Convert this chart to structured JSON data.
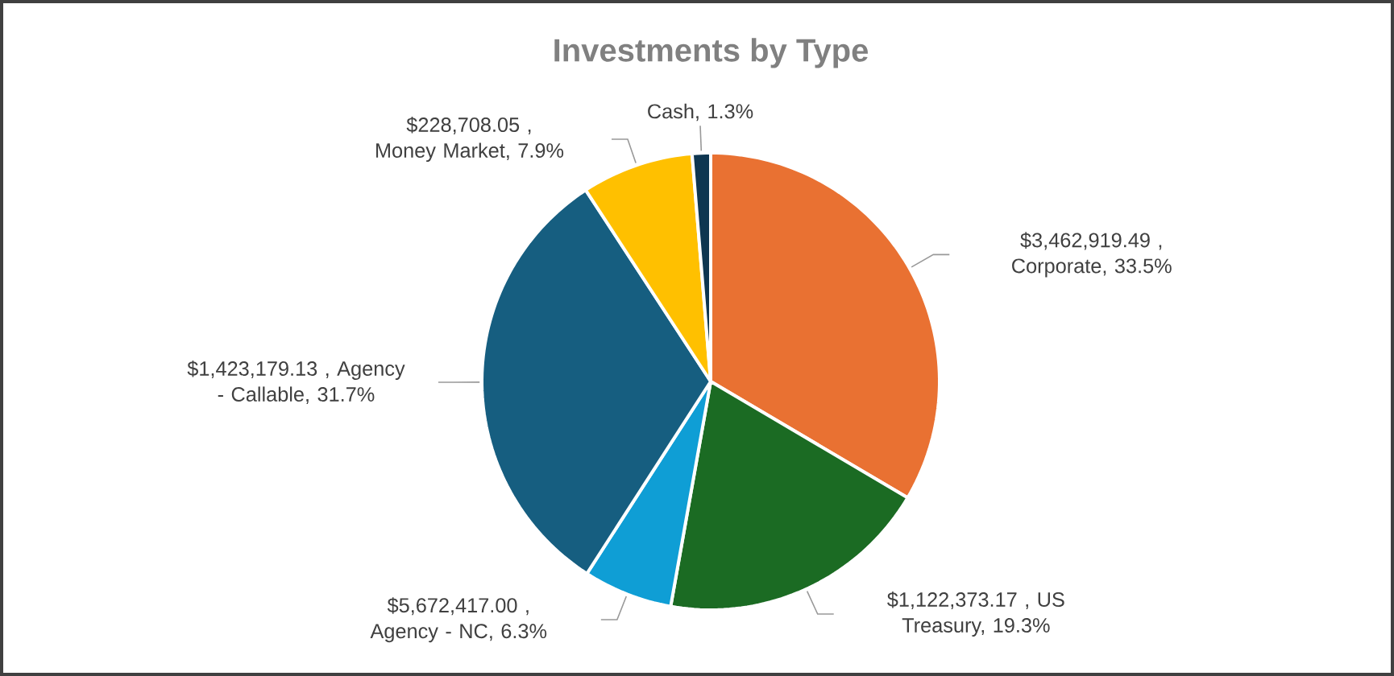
{
  "chart_data": {
    "type": "pie",
    "title": "Investments by Type",
    "categories": [
      "$3,462,919.49 , Corporate, 33.5%",
      "$1,122,373.17 , US Treasury, 19.3%",
      "$5,672,417.00 , Agency - NC, 6.3%",
      "$1,423,179.13 , Agency - Callable, 31.7%",
      "$228,708.05 , Money Market, 7.9%",
      "Cash, 1.3%"
    ],
    "values": [
      33.5,
      19.3,
      6.3,
      31.7,
      7.9,
      1.3
    ],
    "colors": [
      "#e97132",
      "#1b6b23",
      "#0f9ed5",
      "#165e80",
      "#ffc000",
      "#0e3650"
    ]
  }
}
